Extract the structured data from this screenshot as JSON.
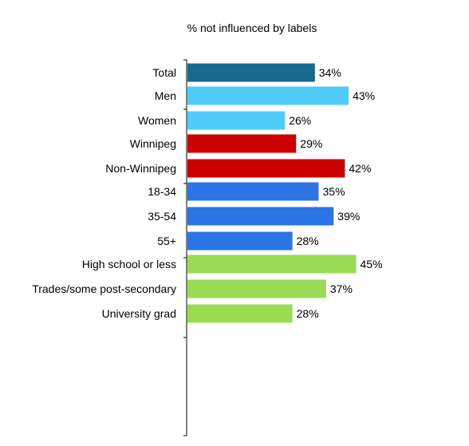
{
  "chart_data": {
    "type": "bar",
    "orientation": "horizontal",
    "title": "% not influenced by labels",
    "xlim": [
      0,
      60
    ],
    "grid": false,
    "legend": "none",
    "groups": [
      {
        "color": "#15698C",
        "categories": [
          "Total"
        ],
        "values": [
          34
        ]
      },
      {
        "color": "#4FCCF9",
        "categories": [
          "Men",
          "Women"
        ],
        "values": [
          43,
          26
        ]
      },
      {
        "color": "#CC0000",
        "categories": [
          "Winnipeg",
          "Non-Winnipeg"
        ],
        "values": [
          29,
          42
        ]
      },
      {
        "color": "#2B75E6",
        "categories": [
          "18-34",
          "35-54",
          "55+"
        ],
        "values": [
          35,
          39,
          28
        ]
      },
      {
        "color": "#9ADB54",
        "categories": [
          "High school or less",
          "Trades/some post-secondary",
          "University grad"
        ],
        "values": [
          45,
          37,
          28
        ]
      }
    ],
    "value_labels": [
      [
        "34%"
      ],
      [
        "43%",
        "26%"
      ],
      [
        "29%",
        "42%"
      ],
      [
        "35%",
        "39%",
        "28%"
      ],
      [
        "45%",
        "37%",
        "28%"
      ]
    ]
  }
}
